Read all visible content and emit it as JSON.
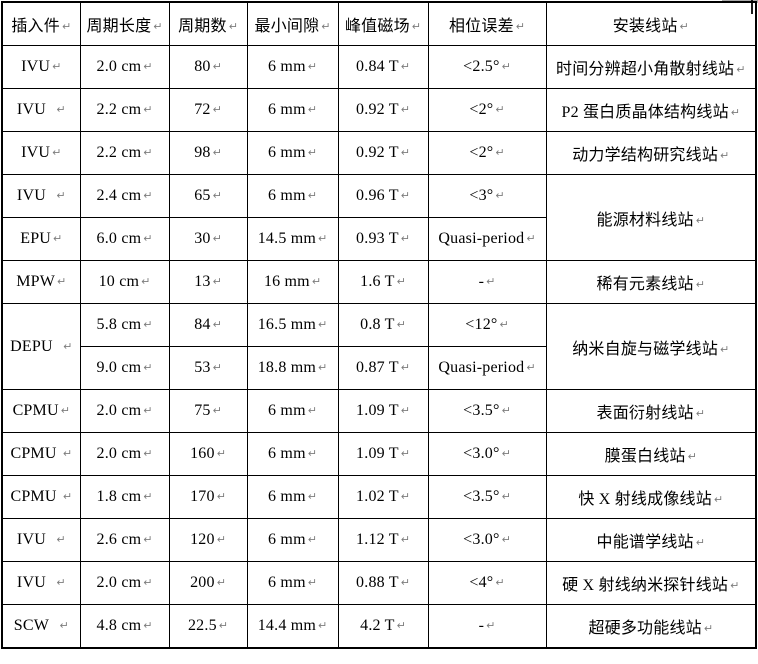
{
  "page": {
    "background": "#ffffff",
    "text_color": "#000000",
    "border_color": "#000000"
  },
  "fragment": {
    "bar_color": "#a8a8a8",
    "line_color": "#1a1a1a"
  },
  "table": {
    "mark": "↵",
    "mark_color": "#7d7d7d",
    "columns": [
      "插入件",
      "周期长度",
      "周期数",
      "最小间隙",
      "峰值磁场",
      "相位误差",
      "安装线站"
    ],
    "rows": [
      {
        "cells": [
          {
            "t": "IVU"
          },
          {
            "t": "2.0 cm"
          },
          {
            "t": "80"
          },
          {
            "t": "6 mm"
          },
          {
            "t": "0.84 T"
          },
          {
            "t": "<2.5°"
          },
          {
            "t": "时间分辨超小角散射线站"
          }
        ]
      },
      {
        "cells": [
          {
            "t": "IVU  "
          },
          {
            "t": "2.2 cm"
          },
          {
            "t": "72"
          },
          {
            "t": "6 mm"
          },
          {
            "t": "0.92 T"
          },
          {
            "t": "<2°"
          },
          {
            "t": "P2 蛋白质晶体结构线站"
          }
        ]
      },
      {
        "cells": [
          {
            "t": "IVU"
          },
          {
            "t": "2.2 cm"
          },
          {
            "t": "98"
          },
          {
            "t": "6 mm"
          },
          {
            "t": "0.92 T"
          },
          {
            "t": "<2°"
          },
          {
            "t": "动力学结构研究线站"
          }
        ]
      },
      {
        "cells": [
          {
            "t": "IVU  "
          },
          {
            "t": "2.4 cm"
          },
          {
            "t": "65"
          },
          {
            "t": "6 mm"
          },
          {
            "t": "0.96 T"
          },
          {
            "t": "<3°"
          },
          {
            "t": "能源材料线站",
            "rs": 2
          }
        ]
      },
      {
        "cells": [
          {
            "t": "EPU"
          },
          {
            "t": "6.0 cm"
          },
          {
            "t": "30"
          },
          {
            "t": "14.5 mm"
          },
          {
            "t": "0.93 T"
          },
          {
            "t": "Quasi-period"
          }
        ]
      },
      {
        "cells": [
          {
            "t": "MPW"
          },
          {
            "t": "10 cm"
          },
          {
            "t": "13"
          },
          {
            "t": "16 mm"
          },
          {
            "t": "1.6 T"
          },
          {
            "t": "-"
          },
          {
            "t": "稀有元素线站"
          }
        ]
      },
      {
        "cells": [
          {
            "t": "DEPU  ",
            "rs": 2
          },
          {
            "t": "5.8 cm"
          },
          {
            "t": "84"
          },
          {
            "t": "16.5 mm"
          },
          {
            "t": "0.8 T"
          },
          {
            "t": "<12°"
          },
          {
            "t": "纳米自旋与磁学线站",
            "rs": 2
          }
        ]
      },
      {
        "cells": [
          {
            "t": "9.0 cm"
          },
          {
            "t": "53"
          },
          {
            "t": "18.8 mm"
          },
          {
            "t": "0.87 T"
          },
          {
            "t": "Quasi-period"
          }
        ]
      },
      {
        "cells": [
          {
            "t": "CPMU"
          },
          {
            "t": "2.0 cm"
          },
          {
            "t": "75"
          },
          {
            "t": "6 mm"
          },
          {
            "t": "1.09 T"
          },
          {
            "t": "<3.5°"
          },
          {
            "t": "表面衍射线站"
          }
        ]
      },
      {
        "cells": [
          {
            "t": "CPMU "
          },
          {
            "t": "2.0 cm"
          },
          {
            "t": "160"
          },
          {
            "t": "6 mm"
          },
          {
            "t": "1.09 T"
          },
          {
            "t": "<3.0°"
          },
          {
            "t": "膜蛋白线站"
          }
        ]
      },
      {
        "cells": [
          {
            "t": "CPMU "
          },
          {
            "t": "1.8 cm"
          },
          {
            "t": "170"
          },
          {
            "t": "6 mm"
          },
          {
            "t": "1.02 T"
          },
          {
            "t": "<3.5°"
          },
          {
            "t": "快 X 射线成像线站"
          }
        ]
      },
      {
        "cells": [
          {
            "t": "IVU  "
          },
          {
            "t": "2.6 cm"
          },
          {
            "t": "120"
          },
          {
            "t": "6 mm"
          },
          {
            "t": "1.12 T"
          },
          {
            "t": "<3.0°"
          },
          {
            "t": "中能谱学线站"
          }
        ]
      },
      {
        "cells": [
          {
            "t": "IVU  "
          },
          {
            "t": "2.0 cm"
          },
          {
            "t": "200"
          },
          {
            "t": "6 mm"
          },
          {
            "t": "0.88 T"
          },
          {
            "t": "<4°"
          },
          {
            "t": "硬 X 射线纳米探针线站"
          }
        ]
      },
      {
        "cells": [
          {
            "t": "SCW  "
          },
          {
            "t": "4.8 cm"
          },
          {
            "t": "22.5"
          },
          {
            "t": "14.4 mm"
          },
          {
            "t": "4.2 T"
          },
          {
            "t": "-"
          },
          {
            "t": "超硬多功能线站"
          }
        ]
      }
    ]
  }
}
